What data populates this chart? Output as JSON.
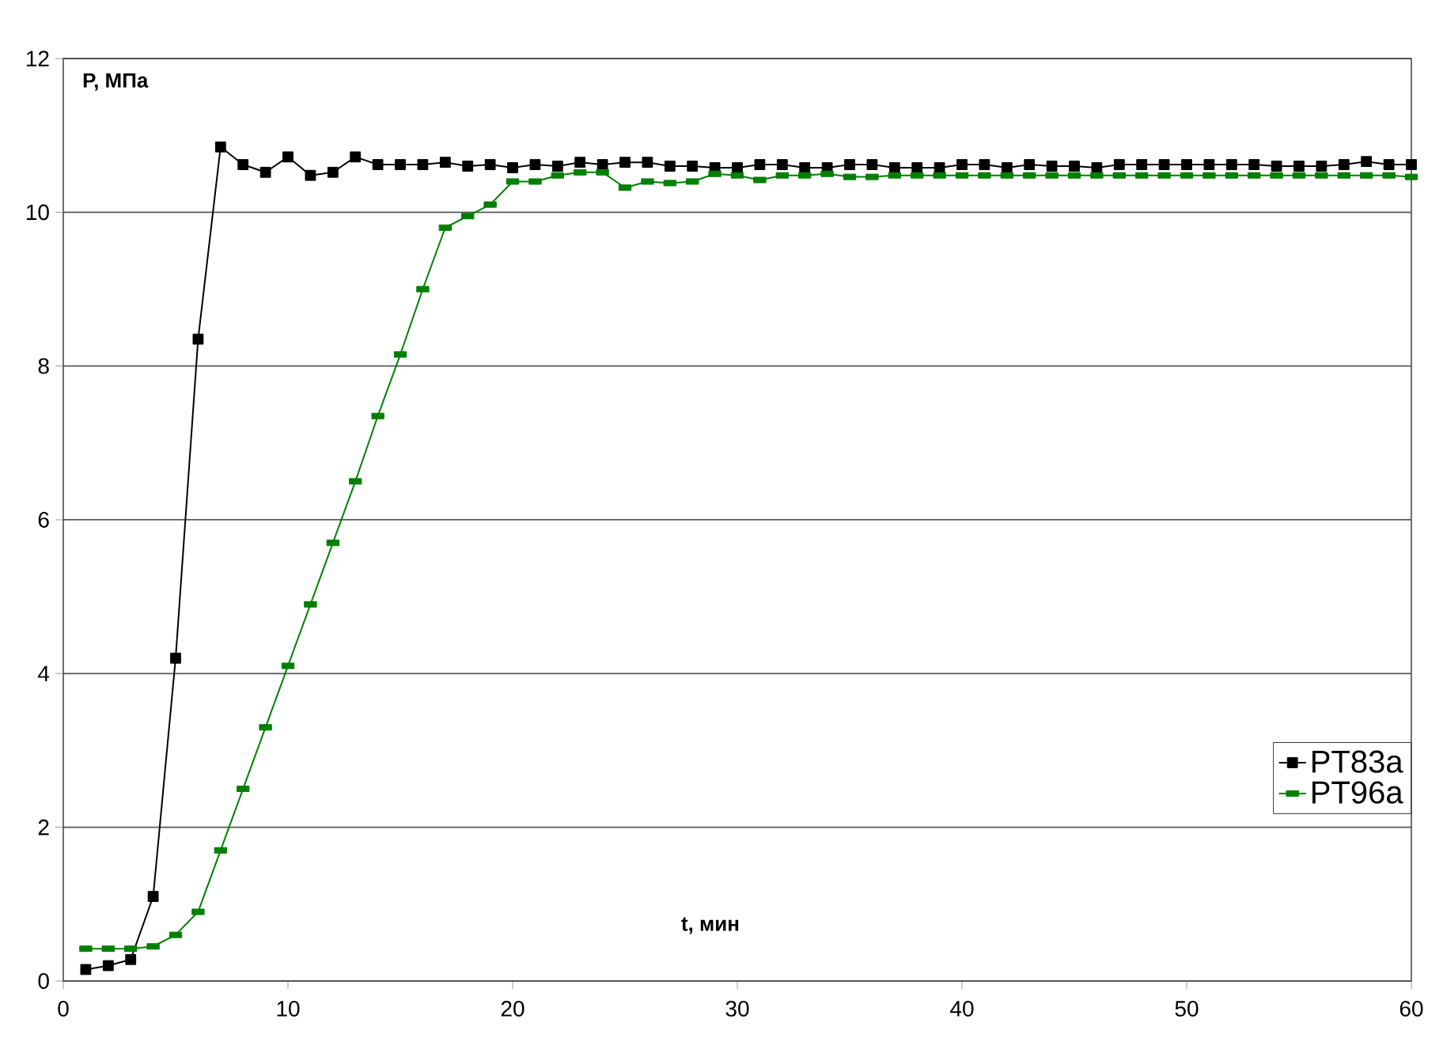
{
  "chart_data": {
    "type": "line",
    "xlabel": "t, мин",
    "ylabel": "P, МПа",
    "x": [
      1,
      2,
      3,
      4,
      5,
      6,
      7,
      8,
      9,
      10,
      11,
      12,
      13,
      14,
      15,
      16,
      17,
      18,
      19,
      20,
      21,
      22,
      23,
      24,
      25,
      26,
      27,
      28,
      29,
      30,
      31,
      32,
      33,
      34,
      35,
      36,
      37,
      38,
      39,
      40,
      41,
      42,
      43,
      44,
      45,
      46,
      47,
      48,
      49,
      50,
      51,
      52,
      53,
      54,
      55,
      56,
      57,
      58,
      59,
      60
    ],
    "series": [
      {
        "name": "PT83a",
        "color": "#000000",
        "marker": "square",
        "values": [
          0.15,
          0.2,
          0.28,
          1.1,
          4.2,
          8.35,
          10.85,
          10.62,
          10.52,
          10.72,
          10.48,
          10.52,
          10.72,
          10.62,
          10.62,
          10.62,
          10.65,
          10.6,
          10.62,
          10.58,
          10.62,
          10.6,
          10.65,
          10.62,
          10.65,
          10.65,
          10.6,
          10.6,
          10.58,
          10.58,
          10.62,
          10.62,
          10.58,
          10.58,
          10.62,
          10.62,
          10.58,
          10.58,
          10.58,
          10.62,
          10.62,
          10.58,
          10.62,
          10.6,
          10.6,
          10.58,
          10.62,
          10.62,
          10.62,
          10.62,
          10.62,
          10.62,
          10.62,
          10.6,
          10.6,
          10.6,
          10.62,
          10.66,
          10.62,
          10.62
        ]
      },
      {
        "name": "PT96a",
        "color": "#008000",
        "marker": "square",
        "values": [
          0.42,
          0.42,
          0.42,
          0.45,
          0.6,
          0.9,
          1.7,
          2.5,
          3.3,
          4.1,
          4.9,
          5.7,
          6.5,
          7.35,
          8.15,
          9.0,
          9.8,
          9.95,
          10.1,
          10.4,
          10.4,
          10.48,
          10.52,
          10.52,
          10.32,
          10.4,
          10.38,
          10.4,
          10.5,
          10.48,
          10.42,
          10.48,
          10.48,
          10.5,
          10.46,
          10.46,
          10.48,
          10.48,
          10.48,
          10.48,
          10.48,
          10.48,
          10.48,
          10.48,
          10.48,
          10.48,
          10.48,
          10.48,
          10.48,
          10.48,
          10.48,
          10.48,
          10.48,
          10.48,
          10.48,
          10.48,
          10.48,
          10.48,
          10.48,
          10.46
        ]
      }
    ],
    "xlim": [
      0,
      60
    ],
    "xticks": [
      0,
      10,
      20,
      30,
      40,
      50,
      60
    ],
    "ylim": [
      0,
      12
    ],
    "yticks": [
      0,
      2,
      4,
      6,
      8,
      10,
      12
    ],
    "grid": "y",
    "legend": "right"
  }
}
